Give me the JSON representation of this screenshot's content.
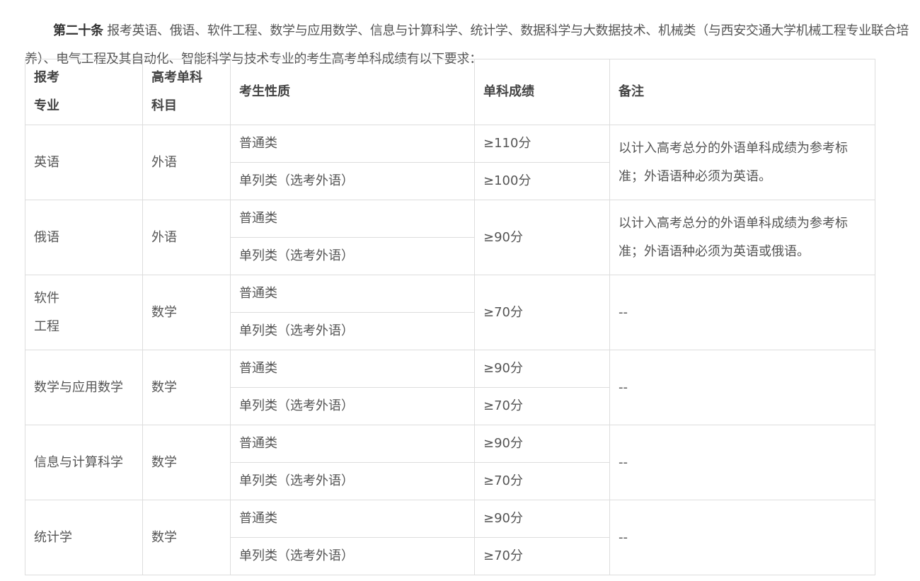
{
  "intro": {
    "article": "第二十条",
    "text": " 报考英语、俄语、软件工程、数学与应用数学、信息与计算科学、统计学、数据科学与大数据技术、机械类（与西安交通大学机械工程专业联合培养）、电气工程及其自动化、智能科学与技术专业的考生高考单科成绩有以下要求："
  },
  "table": {
    "headers": [
      "报考\n专业",
      "高考单科\n科目",
      "考生性质",
      "单科成绩",
      "备注"
    ],
    "rows": [
      {
        "major": "英语",
        "subject": "外语",
        "types": [
          "普通类",
          "单列类（选考外语）"
        ],
        "scores": [
          "≥110分",
          "≥100分"
        ],
        "note": "以计入高考总分的外语单科成绩为参考标准；外语语种必须为英语。"
      },
      {
        "major": "俄语",
        "subject": "外语",
        "types": [
          "普通类",
          "单列类（选考外语）"
        ],
        "scores": [
          "≥90分"
        ],
        "note": "以计入高考总分的外语单科成绩为参考标准；外语语种必须为英语或俄语。"
      },
      {
        "major": "软件\n工程",
        "subject": "数学",
        "types": [
          "普通类",
          "单列类（选考外语）"
        ],
        "scores": [
          "≥70分"
        ],
        "note": "--"
      },
      {
        "major": "数学与应用数学",
        "subject": "数学",
        "types": [
          "普通类",
          "单列类（选考外语）"
        ],
        "scores": [
          "≥90分",
          "≥70分"
        ],
        "note": "--"
      },
      {
        "major": "信息与计算科学",
        "subject": "数学",
        "types": [
          "普通类",
          "单列类（选考外语）"
        ],
        "scores": [
          "≥90分",
          "≥70分"
        ],
        "note": "--"
      },
      {
        "major": "统计学",
        "subject": "数学",
        "types": [
          "普通类",
          "单列类（选考外语）"
        ],
        "scores": [
          "≥90分",
          "≥70分"
        ],
        "note": "--"
      }
    ]
  }
}
